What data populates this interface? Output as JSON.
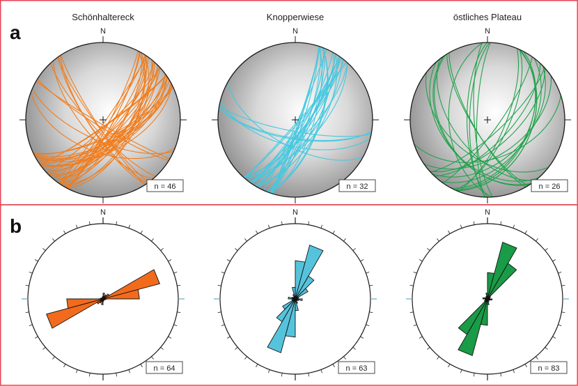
{
  "panels": {
    "a": {
      "label": "a",
      "north": "N",
      "plots": [
        {
          "title": "Schönhaltereck",
          "count": "n = 46",
          "color": "#f07d1e",
          "n": 46,
          "seed": 7,
          "strike_mean": 45,
          "strike_spread": 40,
          "dip_min": 55,
          "dip_max": 88,
          "secondary_strike": 130,
          "secondary_fraction": 0.35
        },
        {
          "title": "Knopperwiese",
          "count": "n = 32",
          "color": "#45c8e0",
          "n": 32,
          "seed": 13,
          "strike_mean": 30,
          "strike_spread": 25,
          "dip_min": 60,
          "dip_max": 88,
          "secondary_strike": 110,
          "secondary_fraction": 0.2
        },
        {
          "title": "östliches Plateau",
          "count": "n = 26",
          "color": "#1fa24a",
          "n": 26,
          "seed": 21,
          "strike_mean": 40,
          "strike_spread": 70,
          "dip_min": 40,
          "dip_max": 85,
          "secondary_strike": 150,
          "secondary_fraction": 0.45
        }
      ]
    },
    "b": {
      "label": "b",
      "north": "N",
      "plots": [
        {
          "count": "n = 64",
          "color": "#f26b1d",
          "petals": [
            0.1,
            0.04,
            0.08,
            0.12,
            1.0,
            0.62,
            0.05,
            0.03,
            0.03,
            0.02,
            0.02,
            0.04
          ]
        },
        {
          "count": "n = 63",
          "color": "#56c3dc",
          "petals": [
            0.65,
            0.95,
            0.45,
            0.25,
            0.06,
            0.04,
            0.12,
            0.06,
            0.04,
            0.04,
            0.08,
            0.2
          ]
        },
        {
          "count": "n = 83",
          "color": "#1a9b47",
          "petals": [
            0.45,
            1.0,
            0.7,
            0.06,
            0.04,
            0.03,
            0.08,
            0.05,
            0.03,
            0.03,
            0.05,
            0.1
          ]
        }
      ]
    }
  },
  "colors": {
    "frame": "#e34a59",
    "outline": "#1a1a1a",
    "sphere_light": "#ffffff",
    "sphere_dark": "#7f7f7f"
  }
}
